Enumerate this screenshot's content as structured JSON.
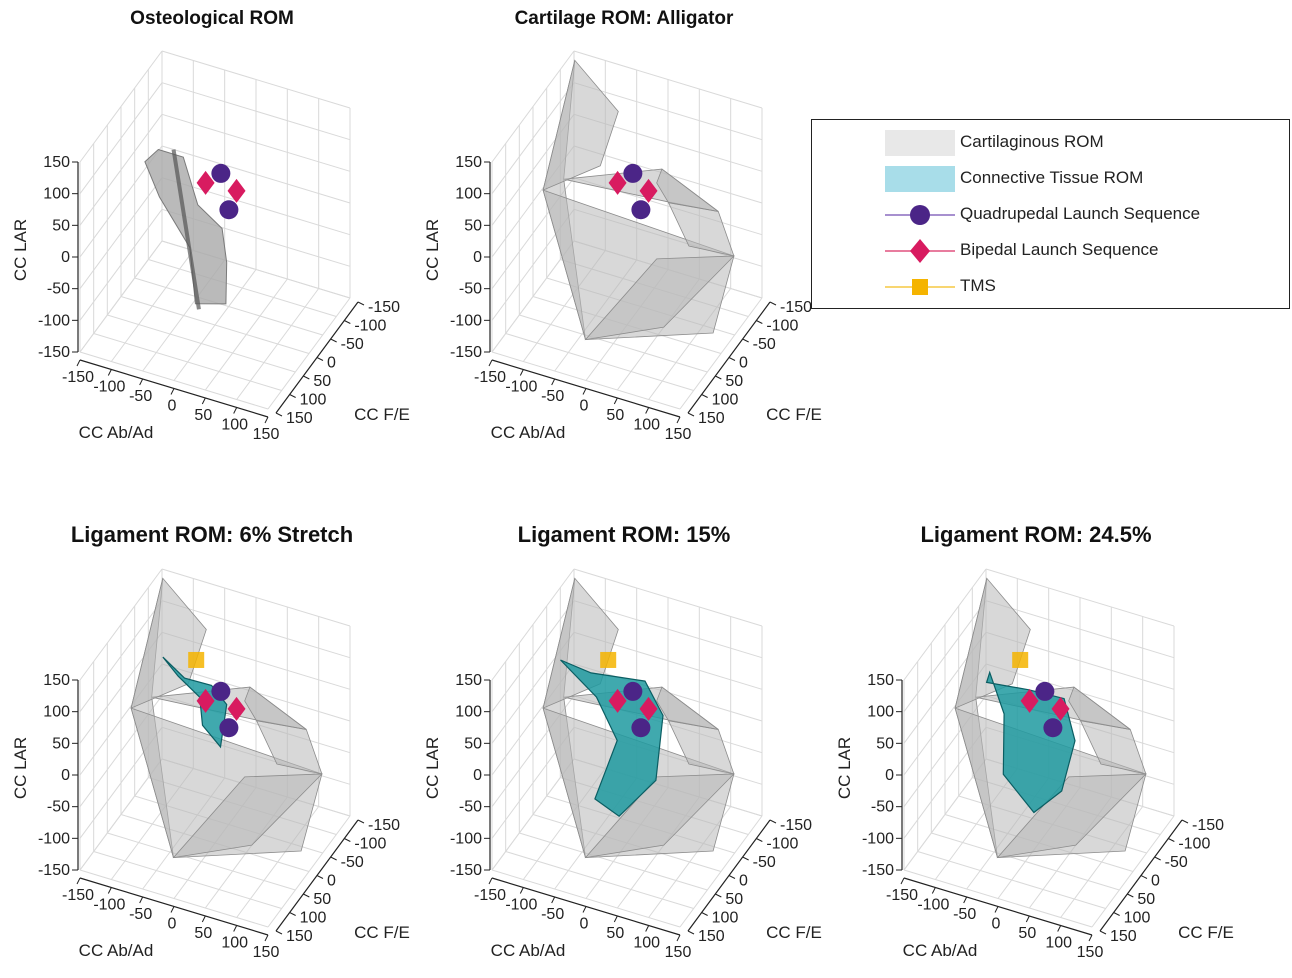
{
  "chart_data": [
    {
      "type": "scatter",
      "title": "Osteological ROM",
      "xlabel": "CC Ab/Ad",
      "ylabel": "CC F/E",
      "zlabel": "CC LAR",
      "xticks": [
        "-150",
        "-100",
        "-50",
        "0",
        "50",
        "100",
        "150"
      ],
      "yticks": [
        "-150",
        "-100",
        "-50",
        "0",
        "50",
        "100",
        "150"
      ],
      "zticks": [
        "150",
        "100",
        "50",
        "0",
        "-50",
        "-100",
        "-150"
      ],
      "surfaces": [
        "osteological"
      ],
      "series": [
        {
          "name": "Quadrupedal Launch Sequence",
          "points": [
            [
              5,
              10,
              85
            ],
            [
              20,
              5,
              35
            ]
          ]
        },
        {
          "name": "Bipedal Launch Sequence",
          "points": [
            [
              -15,
              0,
              70
            ],
            [
              30,
              10,
              65
            ]
          ]
        }
      ]
    },
    {
      "type": "scatter",
      "title": "Cartilage ROM: Alligator",
      "xlabel": "CC Ab/Ad",
      "ylabel": "CC F/E",
      "zlabel": "CC LAR",
      "xticks": [
        "-150",
        "-100",
        "-50",
        "0",
        "50",
        "100",
        "150"
      ],
      "yticks": [
        "-150",
        "-100",
        "-50",
        "0",
        "50",
        "100",
        "150"
      ],
      "zticks": [
        "150",
        "100",
        "50",
        "0",
        "-50",
        "-100",
        "-150"
      ],
      "surfaces": [
        "cartilage"
      ],
      "series": [
        {
          "name": "Quadrupedal Launch Sequence",
          "points": [
            [
              5,
              10,
              85
            ],
            [
              20,
              5,
              35
            ]
          ]
        },
        {
          "name": "Bipedal Launch Sequence",
          "points": [
            [
              -15,
              0,
              70
            ],
            [
              30,
              10,
              65
            ]
          ]
        }
      ]
    },
    {
      "type": "scatter",
      "title": "Ligament ROM: 6% Stretch",
      "xlabel": "CC Ab/Ad",
      "ylabel": "CC F/E",
      "zlabel": "CC LAR",
      "xticks": [
        "-150",
        "-100",
        "-50",
        "0",
        "50",
        "100",
        "150"
      ],
      "yticks": [
        "-150",
        "-100",
        "-50",
        "0",
        "50",
        "100",
        "150"
      ],
      "zticks": [
        "150",
        "100",
        "50",
        "0",
        "-50",
        "-100",
        "-150"
      ],
      "surfaces": [
        "cartilage",
        "ligament_6"
      ],
      "series": [
        {
          "name": "Quadrupedal Launch Sequence",
          "points": [
            [
              5,
              10,
              85
            ],
            [
              20,
              5,
              35
            ]
          ]
        },
        {
          "name": "Bipedal Launch Sequence",
          "points": [
            [
              -15,
              0,
              70
            ],
            [
              30,
              10,
              65
            ]
          ]
        },
        {
          "name": "TMS",
          "points": [
            [
              -30,
              0,
              130
            ]
          ]
        }
      ]
    },
    {
      "type": "scatter",
      "title": "Ligament ROM: 15%",
      "xlabel": "CC Ab/Ad",
      "ylabel": "CC F/E",
      "zlabel": "CC LAR",
      "xticks": [
        "-150",
        "-100",
        "-50",
        "0",
        "50",
        "100",
        "150"
      ],
      "yticks": [
        "-150",
        "-100",
        "-50",
        "0",
        "50",
        "100",
        "150"
      ],
      "zticks": [
        "150",
        "100",
        "50",
        "0",
        "-50",
        "-100",
        "-150"
      ],
      "surfaces": [
        "cartilage",
        "ligament_15"
      ],
      "series": [
        {
          "name": "Quadrupedal Launch Sequence",
          "points": [
            [
              5,
              10,
              85
            ],
            [
              20,
              5,
              35
            ]
          ]
        },
        {
          "name": "Bipedal Launch Sequence",
          "points": [
            [
              -15,
              0,
              70
            ],
            [
              30,
              10,
              65
            ]
          ]
        },
        {
          "name": "TMS",
          "points": [
            [
              -30,
              0,
              130
            ]
          ]
        }
      ]
    },
    {
      "type": "scatter",
      "title": "Ligament ROM: 24.5%",
      "xlabel": "CC Ab/Ad",
      "ylabel": "CC F/E",
      "zlabel": "CC LAR",
      "xticks": [
        "-150",
        "-100",
        "-50",
        "0",
        "50",
        "100",
        "150"
      ],
      "yticks": [
        "-150",
        "-100",
        "-50",
        "0",
        "50",
        "100",
        "150"
      ],
      "zticks": [
        "150",
        "100",
        "50",
        "0",
        "-50",
        "-100",
        "-150"
      ],
      "surfaces": [
        "cartilage",
        "ligament_24"
      ],
      "series": [
        {
          "name": "Quadrupedal Launch Sequence",
          "points": [
            [
              5,
              10,
              85
            ],
            [
              20,
              5,
              35
            ]
          ]
        },
        {
          "name": "Bipedal Launch Sequence",
          "points": [
            [
              -15,
              0,
              70
            ],
            [
              30,
              10,
              65
            ]
          ]
        },
        {
          "name": "TMS",
          "points": [
            [
              -30,
              0,
              130
            ]
          ]
        }
      ]
    }
  ],
  "legend": {
    "placement": "top-right",
    "items": [
      {
        "label": "Cartilaginous ROM",
        "symbol": "patch",
        "color": "#e8e8e8"
      },
      {
        "label": "Connective Tissue ROM",
        "symbol": "patch",
        "color": "#a8dde9"
      },
      {
        "label": "Quadrupedal Launch Sequence",
        "symbol": "circle",
        "color": "#4b2587",
        "line": "#8a6bbf"
      },
      {
        "label": "Bipedal Launch Sequence",
        "symbol": "diamond",
        "color": "#d81b60",
        "line": "#e0507f"
      },
      {
        "label": "TMS",
        "symbol": "square",
        "color": "#f5b400",
        "line": "#f5c842"
      }
    ]
  },
  "colors": {
    "grid": "#d9d9d9",
    "axis": "#222222",
    "cartilage_fill": "#b8b8b8",
    "osteo_fill": "#a9a9a9",
    "ligament_fill": "#1f9aa0",
    "ligament_edge": "#0b5e63",
    "quadrupedal": "#4b2587",
    "bipedal": "#d81b60",
    "tms": "#f5b400"
  }
}
